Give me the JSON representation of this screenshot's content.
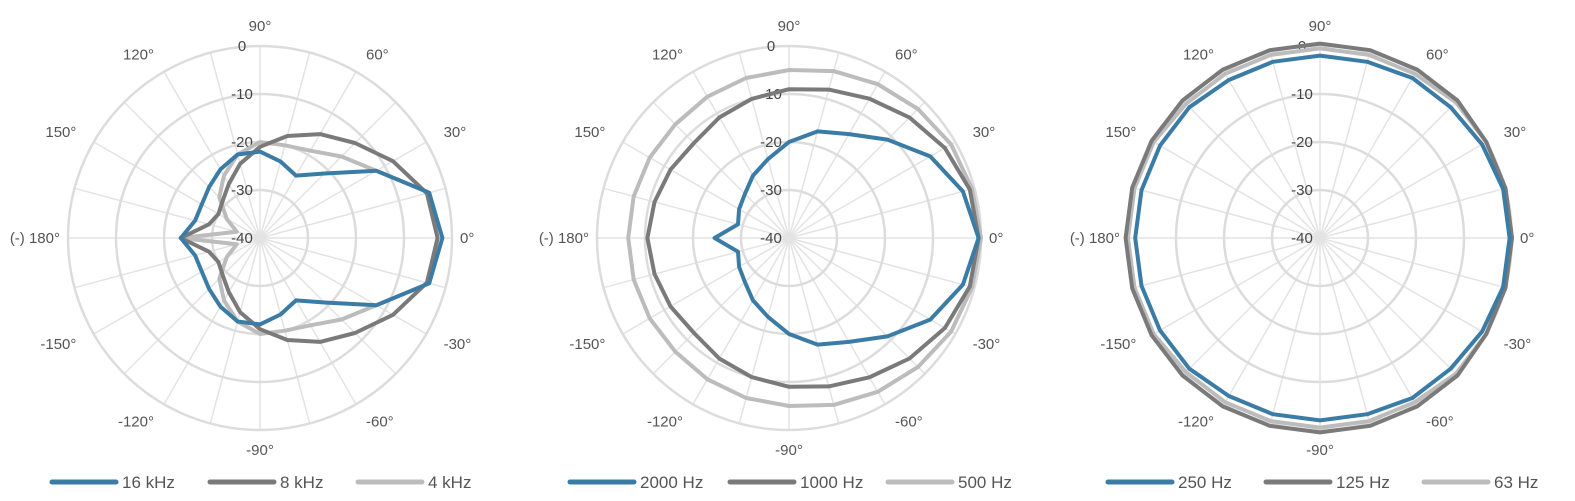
{
  "chart_data": [
    {
      "type": "polar-line",
      "angle_labels": [
        "90°",
        "60°",
        "30°",
        "0°",
        "-30°",
        "-60°",
        "-90°",
        "-120°",
        "-150°",
        "(-) 180°",
        "150°",
        "120°"
      ],
      "ring_labels": [
        "0",
        "-10",
        "-20",
        "-30",
        "-40"
      ],
      "rlim": [
        -40,
        0
      ],
      "grid": true,
      "legend": "bottom",
      "series": [
        {
          "name": "16 kHz",
          "color": "#3a7ca5",
          "angles": [
            0,
            15,
            30,
            45,
            60,
            75,
            90,
            105,
            120,
            135,
            150,
            165,
            180,
            -165,
            -150,
            -135,
            -120,
            -105,
            -90,
            -75,
            -60,
            -45,
            -30,
            -15
          ],
          "values": [
            -2,
            -3.5,
            -12,
            -21,
            -25,
            -23.5,
            -22,
            -22,
            -23.5,
            -25,
            -26,
            -26,
            -23.5,
            -26,
            -26,
            -25,
            -23.5,
            -22,
            -22,
            -23.5,
            -25,
            -21,
            -12,
            -3.5
          ]
        },
        {
          "name": "8 kHz",
          "color": "#7a7a7a",
          "angles": [
            0,
            15,
            30,
            45,
            60,
            75,
            90,
            105,
            120,
            135,
            150,
            165,
            180,
            -165,
            -150,
            -135,
            -120,
            -105,
            -90,
            -75,
            -60,
            -45,
            -30,
            -15
          ],
          "values": [
            -3,
            -4,
            -8,
            -12,
            -15,
            -18,
            -21,
            -24,
            -27,
            -29,
            -30,
            -29,
            -23.5,
            -29,
            -30,
            -29,
            -27,
            -24,
            -21,
            -18,
            -15,
            -12,
            -8,
            -4
          ]
        },
        {
          "name": "4 kHz",
          "color": "#bcbcbc",
          "angles": [
            0,
            15,
            30,
            45,
            60,
            75,
            90,
            105,
            120,
            135,
            150,
            165,
            180,
            -165,
            -150,
            -135,
            -120,
            -105,
            -90,
            -75,
            -60,
            -45,
            -30,
            -15
          ],
          "values": [
            -3,
            -3.5,
            -12,
            -16,
            -19,
            -20,
            -20,
            -22,
            -25,
            -28,
            -32,
            -35,
            -23.5,
            -35,
            -32,
            -28,
            -25,
            -22,
            -20,
            -20,
            -19,
            -16,
            -12,
            -3.5
          ]
        }
      ]
    },
    {
      "type": "polar-line",
      "angle_labels": [
        "90°",
        "60°",
        "30°",
        "0°",
        "-30°",
        "-60°",
        "-90°",
        "-120°",
        "-150°",
        "(-) 180°",
        "150°",
        "120°"
      ],
      "ring_labels": [
        "0",
        "-10",
        "-20",
        "-30",
        "-40"
      ],
      "rlim": [
        -40,
        0
      ],
      "grid": true,
      "legend": "bottom",
      "series": [
        {
          "name": "2000 Hz",
          "color": "#3a7ca5",
          "angles": [
            0,
            15,
            30,
            45,
            60,
            75,
            90,
            105,
            120,
            135,
            150,
            165,
            180,
            -165,
            -150,
            -135,
            -120,
            -105,
            -90,
            -75,
            -60,
            -45,
            -30,
            -15
          ],
          "values": [
            -0.5,
            -2.5,
            -6,
            -11,
            -15,
            -17,
            -20,
            -23,
            -25,
            -27,
            -28,
            -29,
            -24.5,
            -29,
            -28,
            -27,
            -25,
            -23,
            -20,
            -17,
            -15,
            -11,
            -6,
            -2.5
          ]
        },
        {
          "name": "1000 Hz",
          "color": "#7a7a7a",
          "angles": [
            0,
            15,
            30,
            45,
            60,
            75,
            90,
            105,
            120,
            135,
            150,
            165,
            180,
            -165,
            -150,
            -135,
            -120,
            -105,
            -90,
            -75,
            -60,
            -45,
            -30,
            -15
          ],
          "values": [
            -0.5,
            -1,
            -2.5,
            -4.5,
            -6.5,
            -8,
            -9,
            -10,
            -11,
            -12,
            -11.5,
            -11,
            -10.5,
            -11,
            -11.5,
            -12,
            -11,
            -10,
            -9,
            -8,
            -6.5,
            -4.5,
            -2.5,
            -1
          ]
        },
        {
          "name": "500 Hz",
          "color": "#bcbcbc",
          "angles": [
            0,
            15,
            30,
            45,
            60,
            75,
            90,
            105,
            120,
            135,
            150,
            165,
            180,
            -165,
            -150,
            -135,
            -120,
            -105,
            -90,
            -75,
            -60,
            -45,
            -30,
            -15
          ],
          "values": [
            0,
            -0.5,
            -1,
            -2,
            -3,
            -4,
            -5,
            -5.5,
            -6,
            -6.5,
            -6.5,
            -6.5,
            -6.5,
            -6.5,
            -6.5,
            -6.5,
            -6,
            -5.5,
            -5,
            -4,
            -3,
            -2,
            -1,
            -0.5
          ]
        }
      ]
    },
    {
      "type": "polar-line",
      "angle_labels": [
        "90°",
        "60°",
        "30°",
        "0°",
        "-30°",
        "-60°",
        "-90°",
        "-120°",
        "-150°",
        "(-) 180°",
        "150°",
        "120°"
      ],
      "ring_labels": [
        "0",
        "-10",
        "-20",
        "-30",
        "-40"
      ],
      "rlim": [
        -40,
        0
      ],
      "grid": true,
      "legend": "bottom",
      "series": [
        {
          "name": "250 Hz",
          "color": "#3a7ca5",
          "angles": [
            0,
            15,
            30,
            45,
            60,
            75,
            90,
            105,
            120,
            135,
            150,
            165,
            180,
            -165,
            -150,
            -135,
            -120,
            -105,
            -90,
            -75,
            -60,
            -45,
            -30,
            -15
          ],
          "values": [
            -0.5,
            -0.5,
            -1,
            -1.5,
            -1.5,
            -2,
            -2,
            -2,
            -2,
            -1.5,
            -1.5,
            -1.5,
            -1.5,
            -1.5,
            -1.5,
            -1.5,
            -2,
            -2,
            -2,
            -2,
            -1.5,
            -1.5,
            -1,
            -0.5
          ]
        },
        {
          "name": "125 Hz",
          "color": "#7a7a7a",
          "angles": [
            0,
            15,
            30,
            45,
            60,
            75,
            90,
            105,
            120,
            135,
            150,
            165,
            180,
            -165,
            -150,
            -135,
            -120,
            -105,
            -90,
            -75,
            -60,
            -45,
            -30,
            -15
          ],
          "values": [
            0,
            0,
            0,
            0.5,
            0.5,
            0.5,
            0.5,
            0.5,
            0.5,
            0.5,
            0.5,
            0.5,
            0.5,
            0.5,
            0.5,
            0.5,
            0.5,
            0.5,
            0.5,
            0.5,
            0.5,
            0.5,
            0,
            0
          ]
        },
        {
          "name": "63 Hz",
          "color": "#bcbcbc",
          "angles": [
            0,
            15,
            30,
            45,
            60,
            75,
            90,
            105,
            120,
            135,
            150,
            165,
            180,
            -165,
            -150,
            -135,
            -120,
            -105,
            -90,
            -75,
            -60,
            -45,
            -30,
            -15
          ],
          "values": [
            0,
            0,
            0,
            0,
            -0.5,
            -0.5,
            -0.5,
            -0.5,
            -0.5,
            -0.5,
            0,
            0,
            0,
            0,
            0,
            -0.5,
            -0.5,
            -0.5,
            -0.5,
            -0.5,
            -0.5,
            0,
            0,
            0
          ]
        }
      ]
    }
  ]
}
